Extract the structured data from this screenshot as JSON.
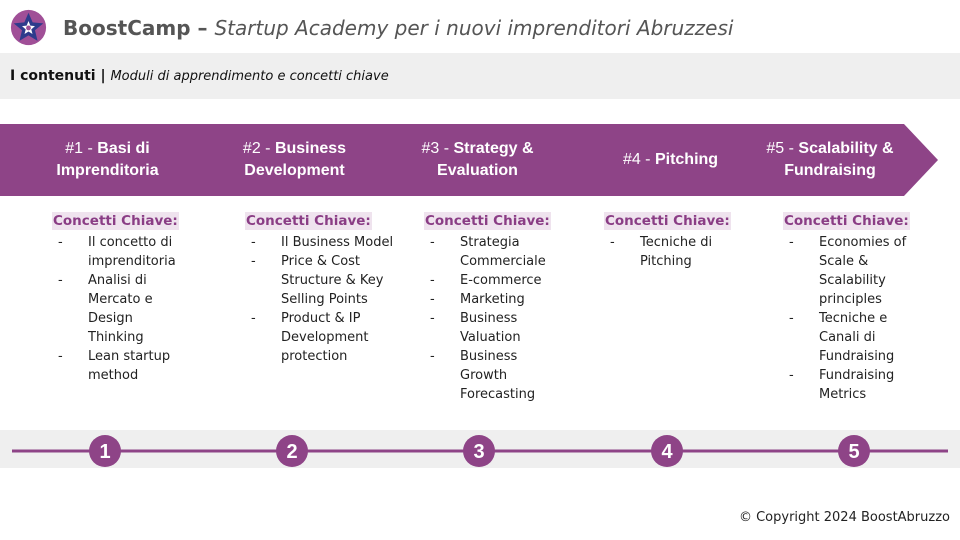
{
  "header": {
    "brand": "BoostCamp",
    "dash": " – ",
    "subtitle": "Startup Academy per i nuovi imprenditori Abruzzesi"
  },
  "subbar": {
    "section": "I contenuti",
    "separator": " | ",
    "description": "Moduli di apprendimento e concetti chiave"
  },
  "colors": {
    "accent": "#8e4487",
    "logo_bg": "#a04f97",
    "logo_star": "#2e3b8c",
    "subbar_bg": "#efefef",
    "concepts_label_bg": "#efe3ee"
  },
  "concepts_label": "Concetti Chiave:",
  "modules": [
    {
      "number": "#1 - ",
      "name": "Basi di Imprenditoria",
      "concepts": [
        "Il concetto di imprenditoria",
        "Analisi di Mercato e Design Thinking",
        "Lean startup method"
      ]
    },
    {
      "number": "#2 - ",
      "name": "Business Development",
      "concepts": [
        "Il Business Model",
        "Price & Cost Structure & Key Selling Points",
        "Product & IP Development protection"
      ]
    },
    {
      "number": "#3 - ",
      "name": "Strategy & Evaluation",
      "concepts": [
        "Strategia Commerciale",
        "E-commerce",
        "Marketing",
        "Business Valuation",
        "Business Growth Forecasting"
      ]
    },
    {
      "number": "#4 - ",
      "name": "Pitching",
      "concepts": [
        "Tecniche di Pitching"
      ]
    },
    {
      "number": "#5 - ",
      "name": "Scalability & Fundraising",
      "concepts": [
        "Economies of Scale & Scalability principles",
        "Tecniche e Canali di Fundraising",
        "Fundraising Metrics"
      ]
    }
  ],
  "timeline_steps": [
    "1",
    "2",
    "3",
    "4",
    "5"
  ],
  "footer": {
    "copyright": "© Copyright 2024 BoostAbruzzo"
  }
}
